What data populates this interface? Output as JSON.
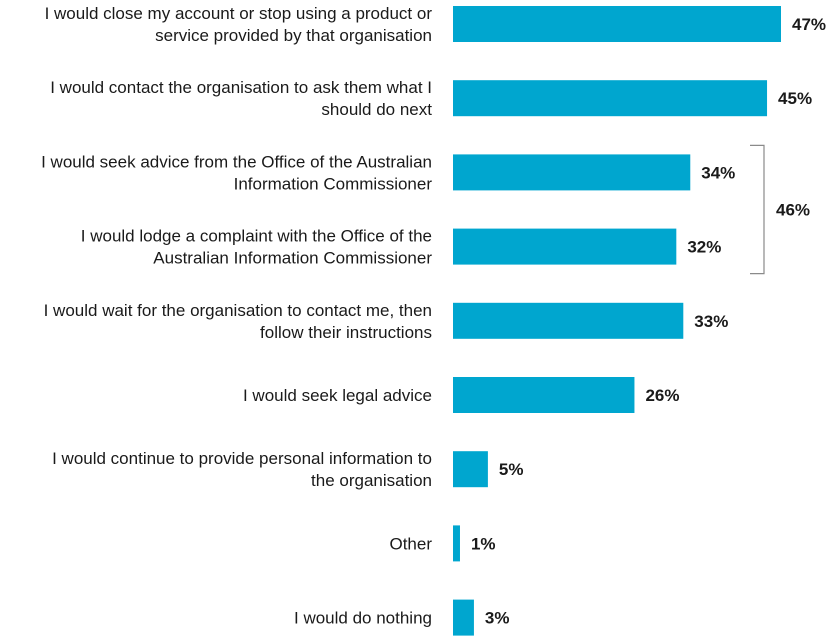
{
  "chart_data": {
    "type": "bar",
    "orientation": "horizontal",
    "categories": [
      [
        "I would close my account or stop using a product or",
        "service provided by that organisation"
      ],
      [
        "I would contact the organisation to ask them what I",
        "should do next"
      ],
      [
        "I would seek advice from the Office of the Australian",
        "Information Commissioner"
      ],
      [
        "I would lodge a complaint with the Office of the",
        "Australian Information Commissioner"
      ],
      [
        "I would wait for the organisation to contact me, then",
        "follow their instructions"
      ],
      [
        "I would seek legal advice"
      ],
      [
        "I would continue to provide personal information to",
        "the organisation"
      ],
      [
        "Other"
      ],
      [
        "I would do nothing"
      ]
    ],
    "values": [
      47,
      45,
      34,
      32,
      33,
      26,
      5,
      1,
      3
    ],
    "value_labels": [
      "47%",
      "45%",
      "34%",
      "32%",
      "33%",
      "26%",
      "5%",
      "1%",
      "3%"
    ],
    "bar_color": "#00a6cf",
    "xlim": [
      0,
      47
    ],
    "grid": false,
    "legend": "none",
    "bracket": {
      "from_index": 2,
      "to_index": 3,
      "label": "46%"
    }
  }
}
